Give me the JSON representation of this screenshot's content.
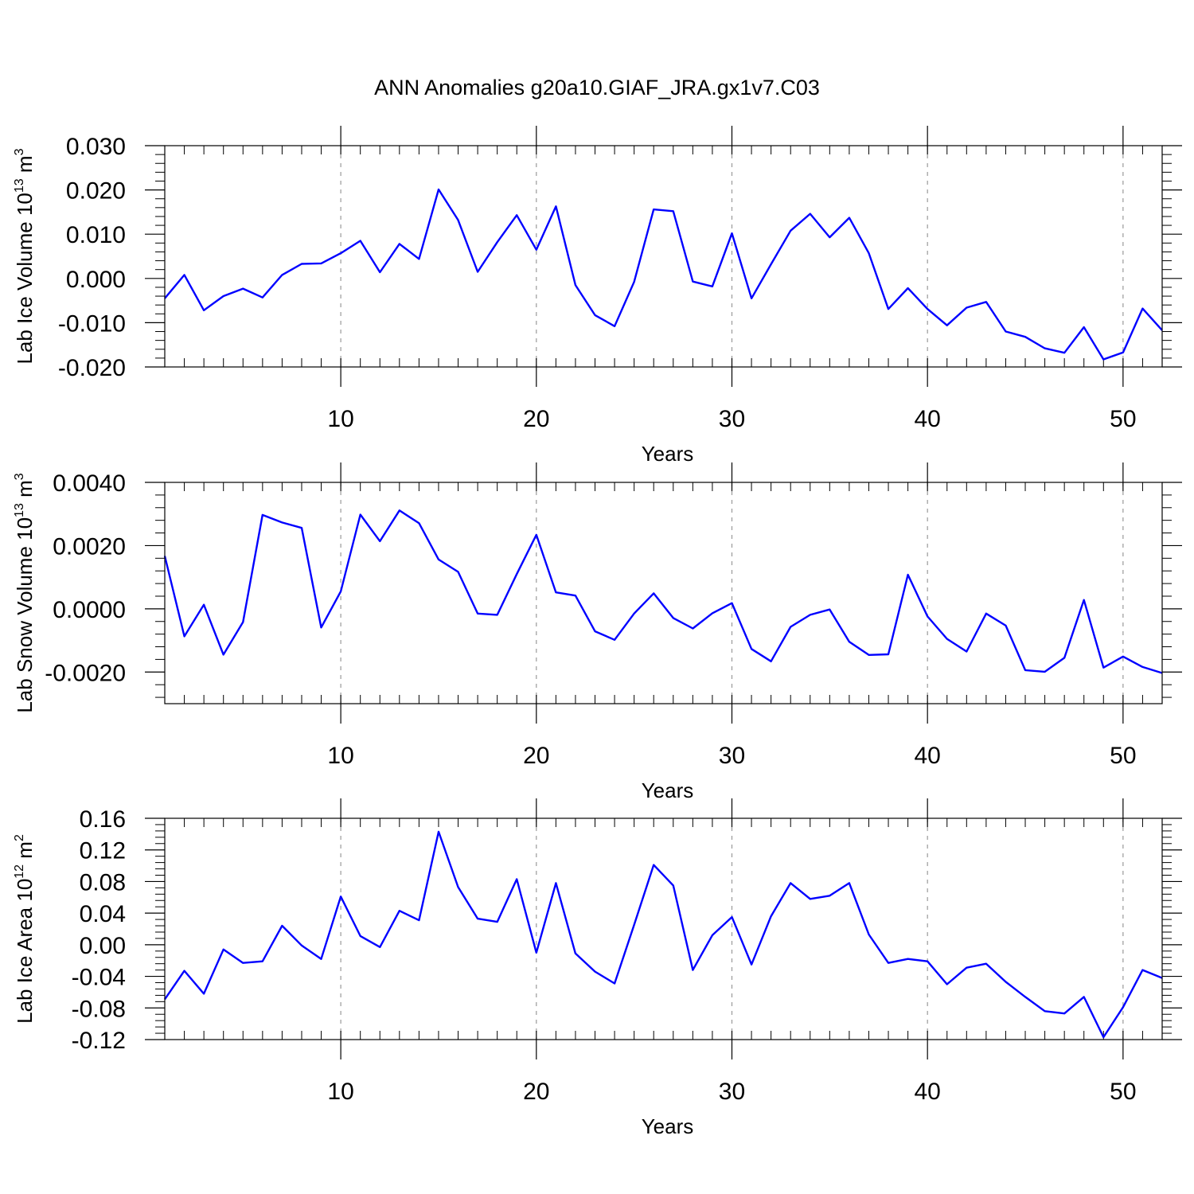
{
  "title": "ANN Anomalies g20a10.GIAF_JRA.gx1v7.C03",
  "chart_data": [
    {
      "type": "line",
      "ylabel": "Lab Ice Volume 10",
      "yunit_exp": "13",
      "yunit_sym": "m",
      "yunit_pow": "3",
      "xlabel": "Years",
      "xlim": [
        1,
        52
      ],
      "ylim": [
        -0.02,
        0.03
      ],
      "yticks": [
        -0.02,
        -0.01,
        0.0,
        0.01,
        0.02,
        0.03
      ],
      "ytick_labels": [
        "-0.020",
        "-0.010",
        "0.000",
        "0.010",
        "0.020",
        "0.030"
      ],
      "yminor_step": 0.002,
      "xticks": [
        10,
        20,
        30,
        40,
        50
      ],
      "xtick_labels": [
        "10",
        "20",
        "30",
        "40",
        "50"
      ],
      "color": "#0000ff",
      "series": [
        {
          "x": [
            1,
            2,
            3,
            4,
            5,
            6,
            7,
            8,
            9,
            10,
            11,
            12,
            13,
            14,
            15,
            16,
            17,
            18,
            19,
            20,
            21,
            22,
            23,
            24,
            25,
            26,
            27,
            28,
            29,
            30,
            31,
            32,
            33,
            34,
            35,
            36,
            37,
            38,
            39,
            40,
            41,
            42,
            43,
            44,
            45,
            46,
            47,
            48,
            49,
            50,
            51,
            52
          ],
          "values": [
            -0.0045,
            0.0008,
            -0.0072,
            -0.004,
            -0.0023,
            -0.0043,
            0.0008,
            0.0033,
            0.0034,
            0.0057,
            0.0085,
            0.0014,
            0.0078,
            0.0044,
            0.0201,
            0.0132,
            0.0015,
            0.0082,
            0.0143,
            0.0065,
            0.0163,
            -0.0015,
            -0.0083,
            -0.0108,
            -0.0008,
            0.0156,
            0.0152,
            -0.0007,
            -0.0018,
            0.0102,
            -0.0045,
            0.0032,
            0.0108,
            0.0146,
            0.0093,
            0.0137,
            0.0057,
            -0.0069,
            -0.0022,
            -0.0069,
            -0.0106,
            -0.0066,
            -0.0053,
            -0.012,
            -0.0132,
            -0.0158,
            -0.0168,
            -0.011,
            -0.0183,
            -0.0167,
            -0.0068,
            -0.0117
          ]
        }
      ]
    },
    {
      "type": "line",
      "ylabel": "Lab Snow Volume 10",
      "yunit_exp": "13",
      "yunit_sym": "m",
      "yunit_pow": "3",
      "xlabel": "Years",
      "xlim": [
        1,
        52
      ],
      "ylim": [
        -0.003,
        0.004
      ],
      "yticks": [
        -0.002,
        0.0,
        0.002,
        0.004
      ],
      "ytick_labels": [
        "-0.0020",
        "0.0000",
        "0.0020",
        "0.0040"
      ],
      "yminor_step": 0.0004,
      "xticks": [
        10,
        20,
        30,
        40,
        50
      ],
      "xtick_labels": [
        "10",
        "20",
        "30",
        "40",
        "50"
      ],
      "color": "#0000ff",
      "series": [
        {
          "x": [
            1,
            2,
            3,
            4,
            5,
            6,
            7,
            8,
            9,
            10,
            11,
            12,
            13,
            14,
            15,
            16,
            17,
            18,
            19,
            20,
            21,
            22,
            23,
            24,
            25,
            26,
            27,
            28,
            29,
            30,
            31,
            32,
            33,
            34,
            35,
            36,
            37,
            38,
            39,
            40,
            41,
            42,
            43,
            44,
            45,
            46,
            47,
            48,
            49,
            50,
            51,
            52
          ],
          "values": [
            0.00167,
            -0.00087,
            0.00013,
            -0.00145,
            -0.00042,
            0.00297,
            0.00273,
            0.00256,
            -0.00059,
            0.00055,
            0.00298,
            0.00214,
            0.00311,
            0.00271,
            0.00156,
            0.00117,
            -0.00015,
            -0.00019,
            0.0011,
            0.00234,
            0.00052,
            0.00042,
            -0.00071,
            -0.00098,
            -0.00015,
            0.00049,
            -0.00029,
            -0.00062,
            -0.00014,
            0.00018,
            -0.00127,
            -0.00166,
            -0.00057,
            -0.00019,
            -2e-05,
            -0.00104,
            -0.00146,
            -0.00144,
            0.00108,
            -0.00024,
            -0.00095,
            -0.00135,
            -0.00015,
            -0.00053,
            -0.00194,
            -0.00199,
            -0.00155,
            0.00028,
            -0.00186,
            -0.00151,
            -0.00184,
            -0.00203
          ]
        }
      ]
    },
    {
      "type": "line",
      "ylabel": "Lab Ice Area 10",
      "yunit_exp": "12",
      "yunit_sym": "m",
      "yunit_pow": "2",
      "xlabel": "Years",
      "xlim": [
        1,
        52
      ],
      "ylim": [
        -0.12,
        0.16
      ],
      "yticks": [
        -0.12,
        -0.08,
        -0.04,
        0.0,
        0.04,
        0.08,
        0.12,
        0.16
      ],
      "ytick_labels": [
        "-0.12",
        "-0.08",
        "-0.04",
        "0.00",
        "0.04",
        "0.08",
        "0.12",
        "0.16"
      ],
      "yminor_step": 0.008,
      "xticks": [
        10,
        20,
        30,
        40,
        50
      ],
      "xtick_labels": [
        "10",
        "20",
        "30",
        "40",
        "50"
      ],
      "color": "#0000ff",
      "series": [
        {
          "x": [
            1,
            2,
            3,
            4,
            5,
            6,
            7,
            8,
            9,
            10,
            11,
            12,
            13,
            14,
            15,
            16,
            17,
            18,
            19,
            20,
            21,
            22,
            23,
            24,
            25,
            26,
            27,
            28,
            29,
            30,
            31,
            32,
            33,
            34,
            35,
            36,
            37,
            38,
            39,
            40,
            41,
            42,
            43,
            44,
            45,
            46,
            47,
            48,
            49,
            50,
            51,
            52
          ],
          "values": [
            -0.069,
            -0.033,
            -0.062,
            -0.006,
            -0.023,
            -0.021,
            0.024,
            -0.001,
            -0.018,
            0.061,
            0.011,
            -0.003,
            0.043,
            0.031,
            0.143,
            0.073,
            0.033,
            0.029,
            0.083,
            -0.01,
            0.078,
            -0.011,
            -0.034,
            -0.049,
            0.025,
            0.101,
            0.075,
            -0.032,
            0.012,
            0.035,
            -0.025,
            0.036,
            0.078,
            0.058,
            0.062,
            0.078,
            0.013,
            -0.023,
            -0.018,
            -0.021,
            -0.05,
            -0.029,
            -0.024,
            -0.047,
            -0.066,
            -0.084,
            -0.087,
            -0.066,
            -0.117,
            -0.079,
            -0.032,
            -0.042
          ]
        }
      ]
    }
  ]
}
